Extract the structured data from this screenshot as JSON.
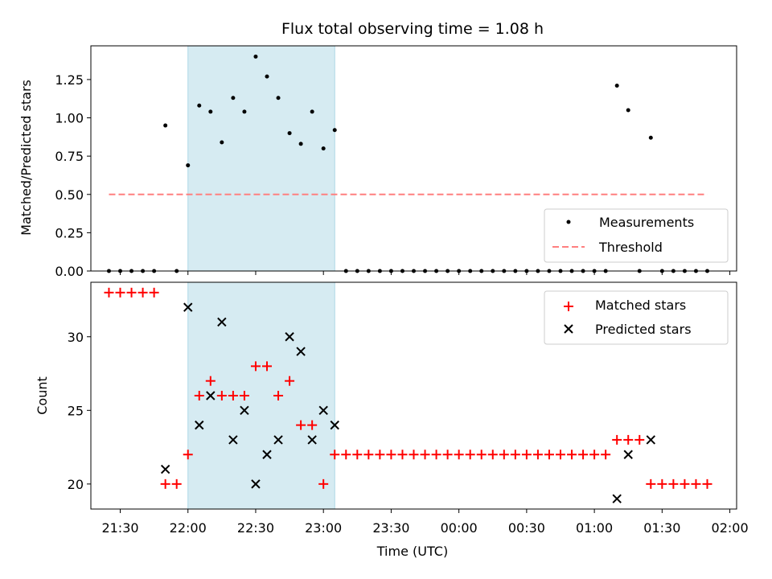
{
  "chart_data": [
    {
      "type": "scatter",
      "title": "Flux total observing time = 1.08 h",
      "xlabel": "",
      "ylabel": "Matched/Predicted stars",
      "xlim": [
        "21:17",
        "02:03"
      ],
      "ylim": [
        0,
        1.47
      ],
      "yticks": [
        "0.00",
        "0.25",
        "0.50",
        "0.75",
        "1.00",
        "1.25"
      ],
      "highlight_span": {
        "start": "22:00",
        "end": "23:05",
        "color": "#add8e6"
      },
      "legend": {
        "placement": "lower-right",
        "entries": [
          "Measurements",
          "Threshold"
        ]
      },
      "series": [
        {
          "name": "Measurements",
          "color": "#000000",
          "x": [
            "21:25",
            "21:30",
            "21:35",
            "21:40",
            "21:45",
            "21:50",
            "21:55",
            "22:00",
            "22:05",
            "22:10",
            "22:15",
            "22:20",
            "22:25",
            "22:30",
            "22:35",
            "22:40",
            "22:45",
            "22:50",
            "22:55",
            "23:00",
            "23:05",
            "23:10",
            "23:15",
            "23:20",
            "23:25",
            "23:30",
            "23:35",
            "23:40",
            "23:45",
            "23:50",
            "23:55",
            "00:00",
            "00:05",
            "00:10",
            "00:15",
            "00:20",
            "00:25",
            "00:30",
            "00:35",
            "00:40",
            "00:45",
            "00:50",
            "00:55",
            "01:00",
            "01:05",
            "01:10",
            "01:15",
            "01:20",
            "01:25",
            "01:30",
            "01:35",
            "01:40",
            "01:45",
            "01:50"
          ],
          "y": [
            0,
            0,
            0,
            0,
            0,
            0.95,
            0,
            0.69,
            1.08,
            1.04,
            0.84,
            1.13,
            1.04,
            1.4,
            1.27,
            1.13,
            0.9,
            0.83,
            1.04,
            0.8,
            0.92,
            0,
            0,
            0,
            0,
            0,
            0,
            0,
            0,
            0,
            0,
            0,
            0,
            0,
            0,
            0,
            0,
            0,
            0,
            0,
            0,
            0,
            0,
            0,
            0,
            1.21,
            1.05,
            0,
            0.87,
            0,
            0,
            0,
            0,
            0
          ]
        },
        {
          "name": "Threshold",
          "color": "#ff7f7f",
          "style": "dashed",
          "x": [
            "21:25",
            "01:50"
          ],
          "y": [
            0.5,
            0.5
          ]
        }
      ]
    },
    {
      "type": "scatter",
      "title": "",
      "xlabel": "Time (UTC)",
      "ylabel": "Count",
      "xlim": [
        "21:17",
        "02:03"
      ],
      "ylim": [
        18.3,
        33.7
      ],
      "yticks": [
        "20",
        "25",
        "30"
      ],
      "xticks": [
        "21:30",
        "22:00",
        "22:30",
        "23:00",
        "23:30",
        "00:00",
        "00:30",
        "01:00",
        "01:30",
        "02:00"
      ],
      "highlight_span": {
        "start": "22:00",
        "end": "23:05",
        "color": "#add8e6"
      },
      "legend": {
        "placement": "upper-right",
        "entries": [
          "Matched stars",
          "Predicted stars"
        ]
      },
      "series": [
        {
          "name": "Matched stars",
          "marker": "plus",
          "color": "#ff0000",
          "x": [
            "21:25",
            "21:30",
            "21:35",
            "21:40",
            "21:45",
            "21:50",
            "21:55",
            "22:00",
            "22:05",
            "22:10",
            "22:15",
            "22:20",
            "22:25",
            "22:30",
            "22:35",
            "22:40",
            "22:45",
            "22:50",
            "22:55",
            "23:00",
            "23:05",
            "23:10",
            "23:15",
            "23:20",
            "23:25",
            "23:30",
            "23:35",
            "23:40",
            "23:45",
            "23:50",
            "23:55",
            "00:00",
            "00:05",
            "00:10",
            "00:15",
            "00:20",
            "00:25",
            "00:30",
            "00:35",
            "00:40",
            "00:45",
            "00:50",
            "00:55",
            "01:00",
            "01:05",
            "01:10",
            "01:15",
            "01:20",
            "01:25",
            "01:30",
            "01:35",
            "01:40",
            "01:45",
            "01:50"
          ],
          "y": [
            33,
            33,
            33,
            33,
            33,
            20,
            20,
            22,
            26,
            27,
            26,
            26,
            26,
            28,
            28,
            26,
            27,
            24,
            24,
            20,
            22,
            22,
            22,
            22,
            22,
            22,
            22,
            22,
            22,
            22,
            22,
            22,
            22,
            22,
            22,
            22,
            22,
            22,
            22,
            22,
            22,
            22,
            22,
            22,
            22,
            23,
            23,
            23,
            20,
            20,
            20,
            20,
            20,
            20
          ]
        },
        {
          "name": "Predicted stars",
          "marker": "x",
          "color": "#000000",
          "x": [
            "21:50",
            "22:00",
            "22:05",
            "22:10",
            "22:15",
            "22:20",
            "22:25",
            "22:30",
            "22:35",
            "22:40",
            "22:45",
            "22:50",
            "22:55",
            "23:00",
            "23:05",
            "01:10",
            "01:15",
            "01:25"
          ],
          "y": [
            21,
            32,
            24,
            26,
            31,
            23,
            25,
            20,
            22,
            23,
            30,
            29,
            23,
            25,
            24,
            19,
            22,
            23
          ]
        }
      ]
    }
  ]
}
